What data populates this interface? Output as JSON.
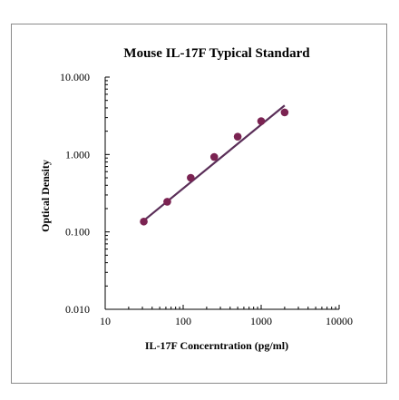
{
  "chart_data": {
    "type": "scatter",
    "title": "Mouse IL-17F Typical Standard",
    "xlabel": "IL-17F Concerntration (pg/ml)",
    "ylabel": "Optical Density",
    "x_scale": "log",
    "y_scale": "log",
    "xlim": [
      10,
      10000
    ],
    "ylim": [
      0.01,
      10
    ],
    "x_ticks": [
      "10",
      "100",
      "1000",
      "10000"
    ],
    "y_ticks": [
      "0.010",
      "0.100",
      "1.000",
      "10.000"
    ],
    "grid": false,
    "legend": "none",
    "points": {
      "x": [
        31.25,
        62.5,
        125,
        250,
        500,
        1000,
        2000
      ],
      "y": [
        0.136,
        0.245,
        0.5,
        0.93,
        1.7,
        2.7,
        3.5
      ]
    },
    "fit_line": {
      "x": [
        31.25,
        2000
      ],
      "y": [
        0.14,
        4.3
      ]
    },
    "colors": {
      "marker": "#7b2352",
      "line": "#5a2e58",
      "axis": "#000000"
    }
  }
}
